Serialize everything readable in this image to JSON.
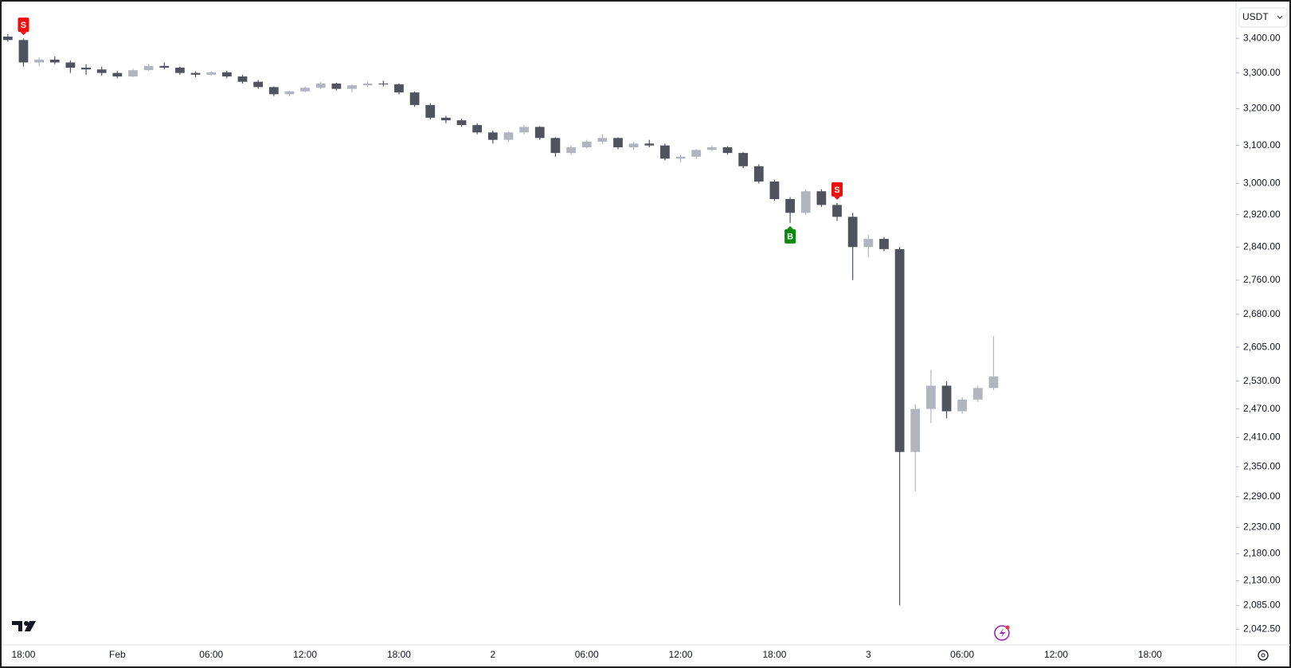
{
  "chart_data": {
    "type": "candlestick",
    "currency": "USDT",
    "log_scale": true,
    "grid": false,
    "up_color": "#b2b5be",
    "down_color": "#50535e",
    "categories": [
      null,
      "18:00",
      null,
      null,
      null,
      null,
      null,
      "Feb",
      null,
      null,
      null,
      null,
      null,
      "06:00",
      null,
      null,
      null,
      null,
      null,
      "12:00",
      null,
      null,
      null,
      null,
      null,
      "18:00",
      null,
      null,
      null,
      null,
      null,
      "2",
      null,
      null,
      null,
      null,
      null,
      "06:00",
      null,
      null,
      null,
      null,
      null,
      "12:00",
      null,
      null,
      null,
      null,
      null,
      "18:00",
      null,
      null,
      null,
      null,
      null,
      "3",
      null,
      null,
      null,
      null,
      null,
      "06:00",
      null,
      null,
      null,
      null,
      null,
      "12:00",
      null,
      null,
      null,
      null,
      null,
      "18:00",
      null,
      null,
      null,
      null,
      null
    ],
    "open": [
      3405,
      3395,
      3330,
      3338,
      3330,
      3315,
      3310,
      3300,
      3290,
      3308,
      3320,
      3315,
      3300,
      3295,
      3302,
      3290,
      3275,
      3260,
      3240,
      3248,
      3258,
      3270,
      3255,
      3265,
      3270,
      3268,
      3245,
      3210,
      3175,
      3168,
      3155,
      3135,
      3115,
      3135,
      3150,
      3120,
      3080,
      3095,
      3110,
      3120,
      3095,
      3105,
      3100,
      3065,
      3070,
      3088,
      3095,
      3080,
      3045,
      3005,
      2960,
      2925,
      2980,
      2945,
      2915,
      2840,
      2860,
      2835,
      2380,
      2470,
      2520,
      2465,
      2490,
      2515,
      null,
      null,
      null,
      null,
      null,
      null,
      null,
      null,
      null,
      null,
      null,
      null,
      null,
      null,
      null
    ],
    "high": [
      3412,
      3400,
      3345,
      3348,
      3336,
      3325,
      3318,
      3305,
      3312,
      3325,
      3330,
      3318,
      3305,
      3305,
      3306,
      3295,
      3280,
      3262,
      3250,
      3262,
      3275,
      3272,
      3268,
      3275,
      3278,
      3270,
      3248,
      3215,
      3180,
      3172,
      3160,
      3140,
      3138,
      3155,
      3152,
      3122,
      3100,
      3115,
      3130,
      3122,
      3110,
      3115,
      3105,
      3075,
      3090,
      3100,
      3098,
      3082,
      3050,
      3010,
      2965,
      2985,
      2985,
      2950,
      2925,
      2870,
      2865,
      2840,
      2480,
      2555,
      2530,
      2495,
      2520,
      2630,
      null,
      null,
      null,
      null,
      null,
      null,
      null,
      null,
      null,
      null,
      null,
      null,
      null,
      null,
      null
    ],
    "low": [
      3390,
      3318,
      3320,
      3325,
      3300,
      3295,
      3292,
      3285,
      3288,
      3305,
      3310,
      3295,
      3288,
      3292,
      3285,
      3270,
      3255,
      3235,
      3235,
      3245,
      3255,
      3250,
      3245,
      3260,
      3262,
      3240,
      3205,
      3170,
      3160,
      3150,
      3130,
      3105,
      3110,
      3130,
      3115,
      3070,
      3075,
      3092,
      3105,
      3090,
      3088,
      3095,
      3060,
      3055,
      3065,
      3085,
      3075,
      3040,
      3000,
      2955,
      2900,
      2920,
      2940,
      2905,
      2760,
      2815,
      2830,
      2085,
      2300,
      2440,
      2450,
      2460,
      2485,
      2510,
      null,
      null,
      null,
      null,
      null,
      null,
      null,
      null,
      null,
      null,
      null,
      null,
      null,
      null,
      null
    ],
    "close": [
      3395,
      3330,
      3338,
      3330,
      3315,
      3310,
      3300,
      3290,
      3308,
      3320,
      3315,
      3300,
      3295,
      3302,
      3290,
      3275,
      3260,
      3240,
      3248,
      3258,
      3270,
      3255,
      3265,
      3270,
      3268,
      3245,
      3210,
      3175,
      3168,
      3155,
      3135,
      3115,
      3135,
      3150,
      3120,
      3080,
      3095,
      3110,
      3120,
      3095,
      3105,
      3100,
      3065,
      3070,
      3088,
      3095,
      3080,
      3045,
      3005,
      2960,
      2925,
      2980,
      2945,
      2915,
      2840,
      2860,
      2835,
      2380,
      2470,
      2520,
      2465,
      2490,
      2515,
      2540,
      null,
      null,
      null,
      null,
      null,
      null,
      null,
      null,
      null,
      null,
      null,
      null,
      null,
      null,
      null
    ],
    "signals": [
      {
        "text": "S",
        "index": 1,
        "position": "above",
        "color": "#f20d0d"
      },
      {
        "text": "B",
        "index": 50,
        "position": "below",
        "color": "#0a8a0a"
      },
      {
        "text": "S",
        "index": 53,
        "position": "above",
        "color": "#f20d0d"
      }
    ],
    "ylim": [
      2018,
      3495
    ],
    "yticks": [
      {
        "value": 3400,
        "label": "3,400.00"
      },
      {
        "value": 3300,
        "label": "3,300.00"
      },
      {
        "value": 3200,
        "label": "3,200.00"
      },
      {
        "value": 3100,
        "label": "3,100.00"
      },
      {
        "value": 3000,
        "label": "3,000.00"
      },
      {
        "value": 2920,
        "label": "2,920.00"
      },
      {
        "value": 2840,
        "label": "2,840.00"
      },
      {
        "value": 2760,
        "label": "2,760.00"
      },
      {
        "value": 2680,
        "label": "2,680.00"
      },
      {
        "value": 2605,
        "label": "2,605.00"
      },
      {
        "value": 2530,
        "label": "2,530.00"
      },
      {
        "value": 2470,
        "label": "2,470.00"
      },
      {
        "value": 2410,
        "label": "2,410.00"
      },
      {
        "value": 2350,
        "label": "2,350.00"
      },
      {
        "value": 2290,
        "label": "2,290.00"
      },
      {
        "value": 2230,
        "label": "2,230.00"
      },
      {
        "value": 2180,
        "label": "2,180.00"
      },
      {
        "value": 2130,
        "label": "2,130.00"
      },
      {
        "value": 2085,
        "label": "2,085.00"
      },
      {
        "value": 2042.5,
        "label": "2,042.50"
      }
    ]
  }
}
